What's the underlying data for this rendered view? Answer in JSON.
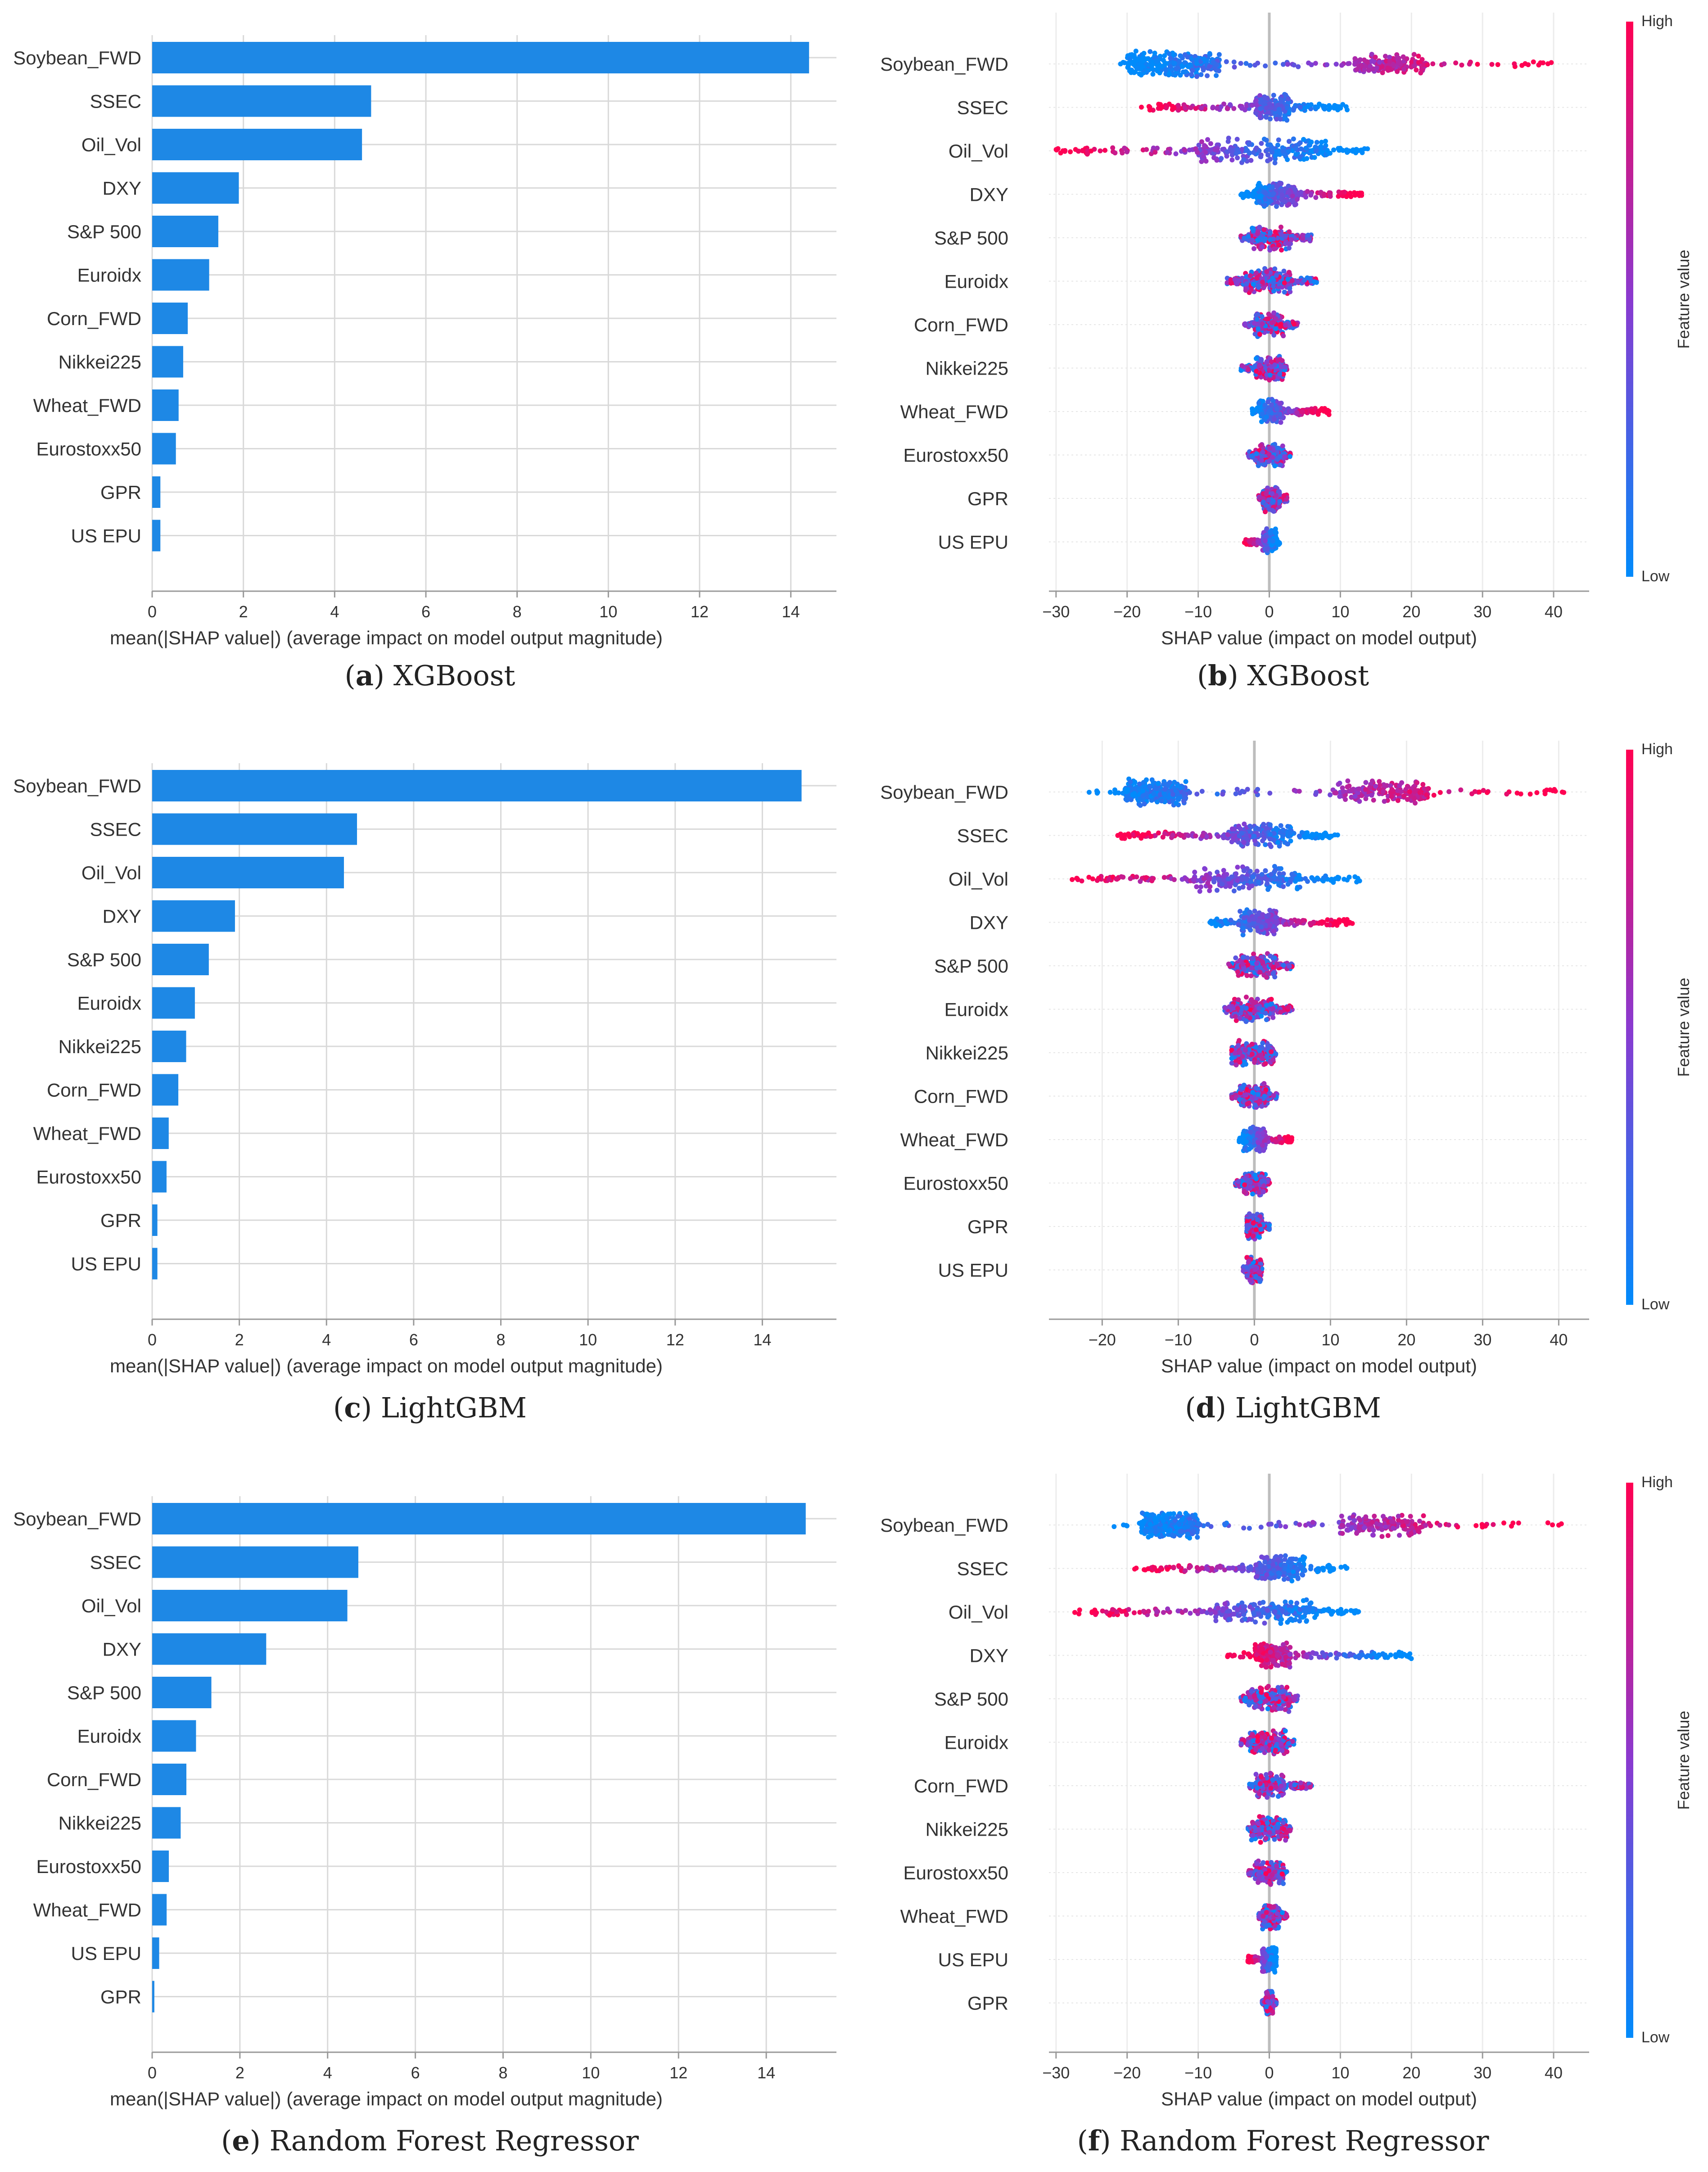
{
  "figure": {
    "captions": [
      {
        "letter": "a",
        "text": "XGBoost"
      },
      {
        "letter": "b",
        "text": "XGBoost"
      },
      {
        "letter": "c",
        "text": "LightGBM"
      },
      {
        "letter": "d",
        "text": "LightGBM"
      },
      {
        "letter": "e",
        "text": "Random Forest Regressor"
      },
      {
        "letter": "f",
        "text": "Random Forest Regressor"
      }
    ]
  },
  "colors": {
    "bar": "#1e88e5",
    "low": "#008bfb",
    "mid": "#8a3ad0",
    "high": "#ff0052",
    "grid": "#d9d9d9",
    "zero_line": "#bdbdbd",
    "text": "#333333"
  },
  "chart_data": [
    {
      "id": "a",
      "type": "bar",
      "title": "XGBoost",
      "xlabel": "mean(|SHAP value|) (average impact on model output magnitude)",
      "xlim": [
        0,
        15
      ],
      "xticks": [
        0,
        2,
        4,
        6,
        8,
        10,
        12,
        14
      ],
      "categories": [
        "Soybean_FWD",
        "SSEC",
        "Oil_Vol",
        "DXY",
        "S&P 500",
        "Euroidx",
        "Corn_FWD",
        "Nikkei225",
        "Wheat_FWD",
        "Eurostoxx50",
        "GPR",
        "US EPU"
      ],
      "values": [
        14.4,
        4.8,
        4.6,
        1.9,
        1.45,
        1.25,
        0.78,
        0.68,
        0.58,
        0.52,
        0.18,
        0.18
      ]
    },
    {
      "id": "b",
      "type": "scatter",
      "subtype": "beeswarm",
      "title": "XGBoost",
      "xlabel": "SHAP value (impact on model output)",
      "xlim": [
        -31,
        45
      ],
      "xticks": [
        -30,
        -20,
        -10,
        0,
        10,
        20,
        30,
        40
      ],
      "colorbar": {
        "label": "Feature value",
        "high": "High",
        "low": "Low"
      },
      "categories": [
        "Soybean_FWD",
        "SSEC",
        "Oil_Vol",
        "DXY",
        "S&P 500",
        "Euroidx",
        "Corn_FWD",
        "Nikkei225",
        "Wheat_FWD",
        "Eurostoxx50",
        "GPR",
        "US EPU"
      ],
      "ranges": [
        [
          -21,
          41
        ],
        [
          -18,
          11
        ],
        [
          -30,
          14
        ],
        [
          -4,
          13
        ],
        [
          -4,
          6
        ],
        [
          -6,
          7
        ],
        [
          -3.5,
          4
        ],
        [
          -4,
          2.5
        ],
        [
          -2.5,
          8.5
        ],
        [
          -3,
          3
        ],
        [
          -1.5,
          2.5
        ],
        [
          -3.5,
          1.5
        ]
      ],
      "dense": [
        [
          -20,
          -7
        ],
        [
          -2,
          3
        ],
        [
          -10,
          8
        ],
        [
          -2,
          4
        ],
        [
          -2.5,
          3
        ],
        [
          -3.5,
          3
        ],
        [
          -2,
          2
        ],
        [
          -2,
          2
        ],
        [
          -1.5,
          2
        ],
        [
          -2,
          2
        ],
        [
          -1,
          1.5
        ],
        [
          -1,
          1
        ]
      ],
      "dense_high": [
        [
          12,
          22
        ],
        null,
        null,
        null,
        null,
        null,
        null,
        null,
        null,
        null,
        null,
        null
      ],
      "lean": [
        "low-high",
        "high-low",
        "high-low",
        "low-high",
        "mixed",
        "mixed",
        "mixed",
        "mixed",
        "low-high",
        "mixed",
        "mixed",
        "high-low"
      ]
    },
    {
      "id": "c",
      "type": "bar",
      "title": "LightGBM",
      "xlabel": "mean(|SHAP value|) (average impact on model output magnitude)",
      "xlim": [
        0,
        15.7
      ],
      "xticks": [
        0,
        2,
        4,
        6,
        8,
        10,
        12,
        14
      ],
      "categories": [
        "Soybean_FWD",
        "SSEC",
        "Oil_Vol",
        "DXY",
        "S&P 500",
        "Euroidx",
        "Nikkei225",
        "Corn_FWD",
        "Wheat_FWD",
        "Eurostoxx50",
        "GPR",
        "US EPU"
      ],
      "values": [
        14.9,
        4.7,
        4.4,
        1.9,
        1.3,
        0.98,
        0.78,
        0.6,
        0.38,
        0.33,
        0.12,
        0.12
      ]
    },
    {
      "id": "d",
      "type": "scatter",
      "subtype": "beeswarm",
      "title": "LightGBM",
      "xlabel": "SHAP value (impact on model output)",
      "xlim": [
        -27,
        44
      ],
      "xticks": [
        -20,
        -10,
        0,
        10,
        20,
        30,
        40
      ],
      "colorbar": {
        "label": "Feature value",
        "high": "High",
        "low": "Low"
      },
      "categories": [
        "Soybean_FWD",
        "SSEC",
        "Oil_Vol",
        "DXY",
        "S&P 500",
        "Euroidx",
        "Nikkei225",
        "Corn_FWD",
        "Wheat_FWD",
        "Eurostoxx50",
        "GPR",
        "US EPU"
      ],
      "ranges": [
        [
          -22,
          41
        ],
        [
          -18,
          11
        ],
        [
          -24,
          14
        ],
        [
          -6,
          13
        ],
        [
          -3.5,
          5
        ],
        [
          -4,
          5
        ],
        [
          -3,
          3
        ],
        [
          -3,
          3
        ],
        [
          -2,
          5
        ],
        [
          -2.5,
          2
        ],
        [
          -1,
          2
        ],
        [
          -1.5,
          1
        ]
      ],
      "dense": [
        [
          -17,
          -9
        ],
        [
          -3,
          5
        ],
        [
          -8,
          6
        ],
        [
          -2,
          3
        ],
        [
          -2.5,
          3
        ],
        [
          -3,
          2.5
        ],
        [
          -3,
          2.5
        ],
        [
          -2,
          2
        ],
        [
          -1.5,
          1.5
        ],
        [
          -1.5,
          1.5
        ],
        [
          -1,
          1
        ],
        [
          -1,
          1
        ]
      ],
      "dense_high": [
        [
          11,
          23
        ],
        null,
        null,
        null,
        null,
        null,
        null,
        null,
        null,
        null,
        null,
        null
      ],
      "lean": [
        "low-high",
        "high-low",
        "high-low",
        "low-high",
        "mixed",
        "mixed",
        "mixed",
        "mixed",
        "low-high",
        "mixed",
        "mixed",
        "mixed"
      ]
    },
    {
      "id": "e",
      "type": "bar",
      "title": "Random Forest Regressor",
      "xlabel": "mean(|SHAP value|) (average impact on model output magnitude)",
      "xlim": [
        0,
        15.6
      ],
      "xticks": [
        0,
        2,
        4,
        6,
        8,
        10,
        12,
        14
      ],
      "categories": [
        "Soybean_FWD",
        "SSEC",
        "Oil_Vol",
        "DXY",
        "S&P 500",
        "Euroidx",
        "Corn_FWD",
        "Nikkei225",
        "Eurostoxx50",
        "Wheat_FWD",
        "US EPU",
        "GPR"
      ],
      "values": [
        14.9,
        4.7,
        4.45,
        2.6,
        1.35,
        1.0,
        0.78,
        0.65,
        0.38,
        0.33,
        0.16,
        0.05
      ]
    },
    {
      "id": "f",
      "type": "scatter",
      "subtype": "beeswarm",
      "title": "Random Forest Regressor",
      "xlabel": "SHAP value (impact on model output)",
      "xlim": [
        -31,
        45
      ],
      "xticks": [
        -30,
        -20,
        -10,
        0,
        10,
        20,
        30,
        40
      ],
      "colorbar": {
        "label": "Feature value",
        "high": "High",
        "low": "Low"
      },
      "categories": [
        "Soybean_FWD",
        "SSEC",
        "Oil_Vol",
        "DXY",
        "S&P 500",
        "Euroidx",
        "Corn_FWD",
        "Nikkei225",
        "Eurostoxx50",
        "Wheat_FWD",
        "US EPU",
        "GPR"
      ],
      "ranges": [
        [
          -22,
          42
        ],
        [
          -19,
          11
        ],
        [
          -28,
          13
        ],
        [
          -6,
          20
        ],
        [
          -4,
          4
        ],
        [
          -4,
          3.5
        ],
        [
          -3,
          6
        ],
        [
          -3,
          3
        ],
        [
          -3,
          2.5
        ],
        [
          -1.5,
          2.5
        ],
        [
          -3,
          1
        ],
        [
          -1,
          1
        ]
      ],
      "dense": [
        [
          -18,
          -10
        ],
        [
          -2,
          5
        ],
        [
          -8,
          7
        ],
        [
          -2,
          3
        ],
        [
          -3,
          3
        ],
        [
          -3,
          2.5
        ],
        [
          -2,
          2
        ],
        [
          -2.5,
          2.5
        ],
        [
          -2,
          2
        ],
        [
          -1,
          1.5
        ],
        [
          -1,
          1
        ],
        [
          -0.5,
          0.5
        ]
      ],
      "dense_high": [
        [
          10,
          22
        ],
        null,
        null,
        null,
        null,
        null,
        null,
        null,
        null,
        null,
        null,
        null
      ],
      "lean": [
        "low-high",
        "high-low",
        "high-low",
        "high-low",
        "mixed",
        "mixed",
        "mixed",
        "mixed",
        "mixed",
        "mixed",
        "high-low",
        "mixed"
      ]
    }
  ]
}
